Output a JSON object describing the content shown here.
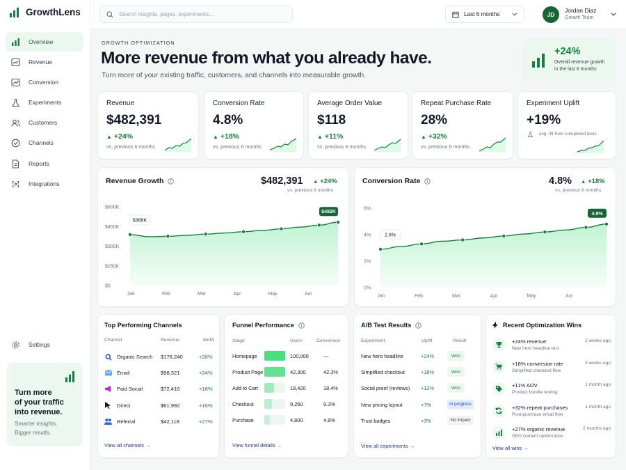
{
  "app": {
    "name": "GrowthLens",
    "brand_color": "#15803d"
  },
  "search": {
    "placeholder": "Search insights, pages, experiments..."
  },
  "date_range": {
    "label": "Last 6 months"
  },
  "user": {
    "initials": "JD",
    "name": "Jordan Diaz",
    "team": "Growth Team"
  },
  "nav": [
    {
      "label": "Overview",
      "icon": "chart-bars-icon",
      "active": true
    },
    {
      "label": "Revenue",
      "icon": "revenue-icon"
    },
    {
      "label": "Conversion",
      "icon": "conversion-icon"
    },
    {
      "label": "Experiments",
      "icon": "flask-icon"
    },
    {
      "label": "Customers",
      "icon": "users-icon"
    },
    {
      "label": "Channels",
      "icon": "compass-icon"
    },
    {
      "label": "Reports",
      "icon": "document-icon"
    },
    {
      "label": "Integrations",
      "icon": "integrations-icon"
    }
  ],
  "settings": {
    "label": "Settings"
  },
  "promo": {
    "title_1": "Turn more",
    "title_2": "of your traffic",
    "title_3": "into revenue.",
    "sub_1": "Smarter insights.",
    "sub_2": "Bigger results."
  },
  "hero": {
    "eyebrow": "GROWTH OPTIMIZATION",
    "title": "More revenue from what you already have.",
    "subtitle": "Turn more of your existing traffic, customers, and channels into measurable growth.",
    "badge_value": "+24%",
    "badge_line1": "Overall revenue growth",
    "badge_line2": "in the last 6 months"
  },
  "kpis": [
    {
      "title": "Revenue",
      "value": "$482,391",
      "delta": "+24%",
      "sub": "vs. previous 6 months"
    },
    {
      "title": "Conversion Rate",
      "value": "4.8%",
      "delta": "+18%",
      "sub": "vs. previous 6 months"
    },
    {
      "title": "Average Order Value",
      "value": "$118",
      "delta": "+11%",
      "sub": "vs. previous 6 months"
    },
    {
      "title": "Repeat Purchase Rate",
      "value": "28%",
      "delta": "+32%",
      "sub": "vs. previous 6 months"
    },
    {
      "title": "Experiment Uplift",
      "value": "+19%",
      "sub": "avg. lift from completed tests"
    }
  ],
  "revenue_chart": {
    "title": "Revenue Growth",
    "value": "$482,391",
    "delta": "+24%",
    "sub": "vs. previous 6 months",
    "start_label": "$388K",
    "end_label": "$482K",
    "yticks": [
      "$600K",
      "$450K",
      "$300K",
      "$150K",
      "$0"
    ]
  },
  "conversion_chart": {
    "title": "Conversion Rate",
    "value": "4.8%",
    "delta": "+18%",
    "sub": "vs. previous 6 months",
    "start_label": "2.9%",
    "end_label": "4.8%",
    "yticks": [
      "6%",
      "4%",
      "2%",
      "0%"
    ]
  },
  "chart_data": [
    {
      "type": "line",
      "title": "Revenue Growth",
      "x": [
        "Jan",
        "",
        "Feb",
        "",
        "Mar",
        "",
        "Apr",
        "",
        "May",
        "",
        "Jun",
        ""
      ],
      "values": [
        388,
        372,
        375,
        382,
        392,
        400,
        410,
        420,
        432,
        445,
        460,
        482
      ],
      "ylim": [
        0,
        600
      ],
      "unit": "$K"
    },
    {
      "type": "line",
      "title": "Conversion Rate",
      "x": [
        "Jan",
        "",
        "Feb",
        "",
        "Mar",
        "",
        "Apr",
        "",
        "May",
        "",
        "Jun",
        ""
      ],
      "values": [
        2.9,
        3.1,
        3.3,
        3.5,
        3.6,
        3.75,
        3.9,
        4.05,
        4.2,
        4.35,
        4.55,
        4.8
      ],
      "ylim": [
        0,
        6
      ],
      "unit": "%"
    }
  ],
  "months": [
    "Jan",
    "Feb",
    "Mar",
    "Apr",
    "May",
    "Jun"
  ],
  "channels": {
    "title": "Top Performing Channels",
    "headers": [
      "Channel",
      "Revenue",
      "MoM"
    ],
    "rows": [
      {
        "name": "Organic Search",
        "revenue": "$176,240",
        "mom": "+28%",
        "icon": "search-icon"
      },
      {
        "name": "Email",
        "revenue": "$98,321",
        "mom": "+24%",
        "icon": "email-icon"
      },
      {
        "name": "Paid Social",
        "revenue": "$72,410",
        "mom": "+18%",
        "icon": "megaphone-icon"
      },
      {
        "name": "Direct",
        "revenue": "$61,992",
        "mom": "+16%",
        "icon": "cursor-icon"
      },
      {
        "name": "Referral",
        "revenue": "$42,118",
        "mom": "+27%",
        "icon": "referral-icon"
      }
    ],
    "link": "View all channels"
  },
  "funnel": {
    "title": "Funnel Performance",
    "headers": [
      "Stage",
      "Users",
      "Conversion"
    ],
    "rows": [
      {
        "stage": "Homepage",
        "users": "100,000",
        "conv": "—",
        "fill": 1.0
      },
      {
        "stage": "Product Page",
        "users": "42,300",
        "conv": "42.3%",
        "fill": 0.423
      },
      {
        "stage": "Add to Cart",
        "users": "18,420",
        "conv": "18.4%",
        "fill": 0.184
      },
      {
        "stage": "Checkout",
        "users": "9,260",
        "conv": "9.3%",
        "fill": 0.093
      },
      {
        "stage": "Purchase",
        "users": "4,800",
        "conv": "4.8%",
        "fill": 0.048
      }
    ],
    "link": "View funnel details"
  },
  "abtests": {
    "title": "A/B Test Results",
    "headers": [
      "Experiment",
      "Uplift",
      "Result"
    ],
    "rows": [
      {
        "name": "New hero headline",
        "uplift": "+24%",
        "result": "Won",
        "status": "won"
      },
      {
        "name": "Simplified checkout",
        "uplift": "+18%",
        "result": "Won",
        "status": "won"
      },
      {
        "name": "Social proof (reviews)",
        "uplift": "+12%",
        "result": "Won",
        "status": "won"
      },
      {
        "name": "New pricing layout",
        "uplift": "+7%",
        "result": "In progress",
        "status": "progress"
      },
      {
        "name": "Trust badges",
        "uplift": "+3%",
        "result": "No impact",
        "status": "none"
      }
    ],
    "link": "View all experiments"
  },
  "wins": {
    "title": "Recent Optimization Wins",
    "rows": [
      {
        "title": "+24% revenue",
        "sub": "New hero headline test",
        "time": "2 weeks ago",
        "icon": "trophy-icon"
      },
      {
        "title": "+18% conversion rate",
        "sub": "Simplified checkout flow",
        "time": "3 weeks ago",
        "icon": "cart-icon"
      },
      {
        "title": "+11% AOV",
        "sub": "Product bundle testing",
        "time": "1 month ago",
        "icon": "tag-icon"
      },
      {
        "title": "+32% repeat purchases",
        "sub": "Post-purchase email flow",
        "time": "1 month ago",
        "icon": "refresh-icon"
      },
      {
        "title": "+27% organic revenue",
        "sub": "SEO content optimization",
        "time": "2 months ago",
        "icon": "bar-chart-icon"
      }
    ],
    "link": "View all wins"
  }
}
